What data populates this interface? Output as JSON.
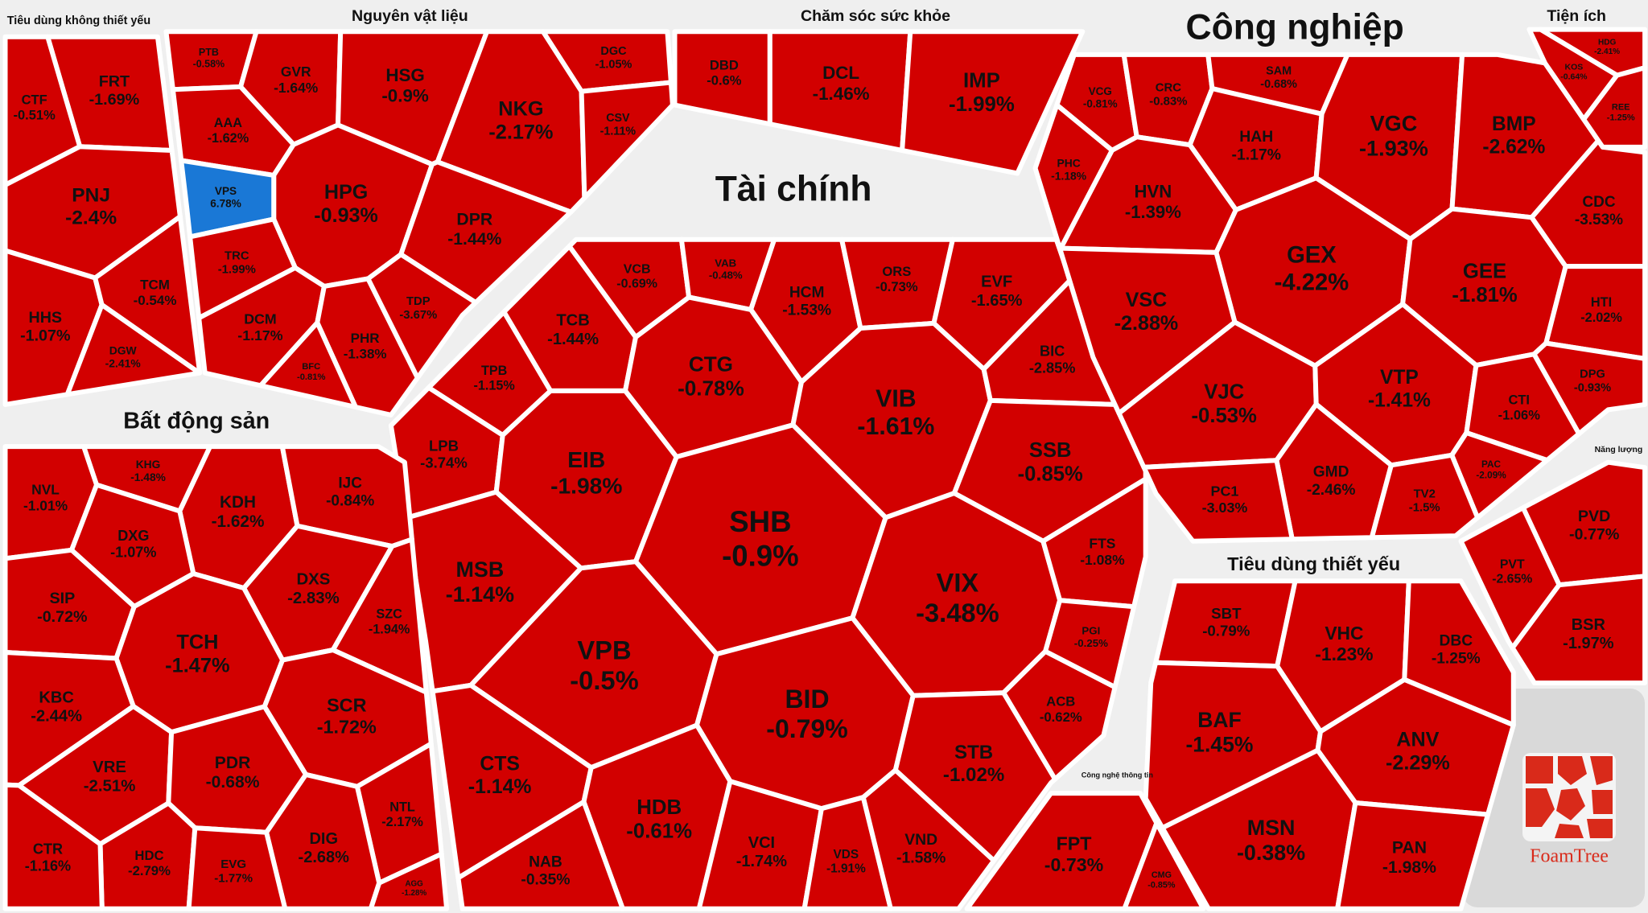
{
  "chart_data": {
    "type": "treemap",
    "colors": {
      "down": "#d20000",
      "up": "#1a78d6"
    },
    "logo": "FoamTree",
    "groups": [
      {
        "name": "Tiêu dùng không thiết yếu",
        "categories": [
          "FRT",
          "CTF",
          "PNJ",
          "HHS",
          "TCM",
          "DGW"
        ],
        "values": [
          -1.69,
          -0.51,
          -2.4,
          -1.07,
          -0.54,
          -2.41
        ],
        "value_labels": [
          "-1.69%",
          "-0.51%",
          "-2.4%",
          "-1.07%",
          "-0.54%",
          "-2.41%"
        ]
      },
      {
        "name": "Nguyên vật liệu",
        "categories": [
          "PTB",
          "GVR",
          "HSG",
          "DGC",
          "AAA",
          "NKG",
          "HPG",
          "VPS",
          "TRC",
          "DPR",
          "DCM",
          "PHR",
          "TDP",
          "BFC",
          "CSV"
        ],
        "values": [
          -0.58,
          -1.64,
          -0.9,
          -1.05,
          -1.62,
          -2.17,
          -0.93,
          6.78,
          -1.99,
          -1.44,
          -1.17,
          -1.38,
          -3.67,
          -0.81,
          -1.11
        ],
        "value_labels": [
          "-0.58%",
          "-1.64%",
          "-0.9%",
          "-1.05%",
          "-1.62%",
          "-2.17%",
          "-0.93%",
          "6.78%",
          "-1.99%",
          "-1.44%",
          "-1.17%",
          "-1.38%",
          "-3.67%",
          "-0.81%",
          "-1.11%"
        ]
      },
      {
        "name": "Chăm sóc sức khỏe",
        "categories": [
          "DCL",
          "IMP",
          "DBD"
        ],
        "values": [
          -1.46,
          -1.99,
          -0.6
        ],
        "value_labels": [
          "-1.46%",
          "-1.99%",
          "-0.6%"
        ]
      },
      {
        "name": "Tài chính",
        "categories": [
          "VCB",
          "VAB",
          "HCM",
          "ORS",
          "EVF",
          "TCB",
          "CTG",
          "VIB",
          "BIC",
          "TPB",
          "LPB",
          "EIB",
          "SSB",
          "SHB",
          "MSB",
          "VIX",
          "FTS",
          "VPB",
          "BID",
          "ACB",
          "PGI",
          "STB",
          "CTS",
          "HDB",
          "NAB",
          "VCI",
          "VDS",
          "VND"
        ],
        "values": [
          -0.69,
          -0.48,
          -1.53,
          -0.73,
          -1.65,
          -1.44,
          -0.78,
          -1.61,
          -2.85,
          -1.15,
          -3.74,
          -1.98,
          -0.85,
          -0.9,
          -1.14,
          -3.48,
          -1.08,
          -0.5,
          -0.79,
          -0.62,
          -0.25,
          -1.02,
          -1.14,
          -0.61,
          -0.35,
          -1.74,
          -1.91,
          -1.58
        ],
        "value_labels": [
          "-0.69%",
          "-0.48%",
          "-1.53%",
          "-0.73%",
          "-1.65%",
          "-1.44%",
          "-0.78%",
          "-1.61%",
          "-2.85%",
          "-1.15%",
          "-3.74%",
          "-1.98%",
          "-0.85%",
          "-0.9%",
          "-1.14%",
          "-3.48%",
          "-1.08%",
          "-0.5%",
          "-0.79%",
          "-0.62%",
          "-0.25%",
          "-1.02%",
          "-1.14%",
          "-0.61%",
          "-0.35%",
          "-1.74%",
          "-1.91%",
          "-1.58%"
        ]
      },
      {
        "name": "Công nghiệp",
        "categories": [
          "VCG",
          "CRC",
          "SAM",
          "HAH",
          "VGC",
          "BMP",
          "PHC",
          "HVN",
          "GEX",
          "GEE",
          "CDC",
          "VSC",
          "HTI",
          "VJC",
          "VTP",
          "DPG",
          "CTI",
          "GMD",
          "PAC",
          "TV2",
          "PC1"
        ],
        "values": [
          -0.81,
          -0.83,
          -0.68,
          -1.17,
          -1.93,
          -2.62,
          -1.18,
          -1.39,
          -4.22,
          -1.81,
          -3.53,
          -2.88,
          -2.02,
          -0.53,
          -1.41,
          -0.93,
          -1.06,
          -2.46,
          -2.09,
          -1.5,
          -3.03
        ],
        "value_labels": [
          "-0.81%",
          "-0.83%",
          "-0.68%",
          "-1.17%",
          "-1.93%",
          "-2.62%",
          "-1.18%",
          "-1.39%",
          "-4.22%",
          "-1.81%",
          "-3.53%",
          "-2.88%",
          "-2.02%",
          "-0.53%",
          "-1.41%",
          "-0.93%",
          "-1.06%",
          "-2.46%",
          "-2.09%",
          "-1.5%",
          "-3.03%"
        ]
      },
      {
        "name": "Tiện ích",
        "categories": [
          "HDG",
          "KOS",
          "REE"
        ],
        "values": [
          -2.41,
          -0.64,
          -1.25
        ],
        "value_labels": [
          "-2.41%",
          "-0.64%",
          "-1.25%"
        ]
      },
      {
        "name": "Năng lượng",
        "categories": [
          "PVD",
          "PVT",
          "BSR"
        ],
        "values": [
          -0.77,
          -2.65,
          -1.97
        ],
        "value_labels": [
          "-0.77%",
          "-2.65%",
          "-1.97%"
        ]
      },
      {
        "name": "Tiêu dùng thiết yếu",
        "categories": [
          "SBT",
          "VHC",
          "DBC",
          "BAF",
          "ANV",
          "MSN",
          "PAN"
        ],
        "values": [
          -0.79,
          -1.23,
          -1.25,
          -1.45,
          -2.29,
          -0.38,
          -1.98
        ],
        "value_labels": [
          "-0.79%",
          "-1.23%",
          "-1.25%",
          "-1.45%",
          "-2.29%",
          "-0.38%",
          "-1.98%"
        ]
      },
      {
        "name": "Công nghệ thông tin",
        "categories": [
          "FPT",
          "CMG"
        ],
        "values": [
          -0.73,
          -0.85
        ],
        "value_labels": [
          "-0.73%",
          "-0.85%"
        ]
      },
      {
        "name": "Bất động sản",
        "categories": [
          "NVL",
          "KHG",
          "KDH",
          "IJC",
          "DXG",
          "DXS",
          "SIP",
          "SZC",
          "TCH",
          "KBC",
          "SCR",
          "VRE",
          "PDR",
          "NTL",
          "DIG",
          "HDC",
          "EVG",
          "AGG",
          "CTR"
        ],
        "values": [
          -1.01,
          -1.48,
          -1.62,
          -0.84,
          -1.07,
          -2.83,
          -0.72,
          -1.94,
          -1.47,
          -2.44,
          -1.72,
          -2.51,
          -0.68,
          -2.17,
          -2.68,
          -2.79,
          -1.77,
          -1.28,
          -1.16
        ],
        "value_labels": [
          "-1.01%",
          "-1.48%",
          "-1.62%",
          "-0.84%",
          "-1.07%",
          "-2.83%",
          "-0.72%",
          "-1.94%",
          "-1.47%",
          "-2.44%",
          "-1.72%",
          "-2.51%",
          "-0.68%",
          "-2.17%",
          "-2.68%",
          "-2.79%",
          "-1.77%",
          "-1.28%",
          "-1.16%"
        ]
      }
    ]
  }
}
